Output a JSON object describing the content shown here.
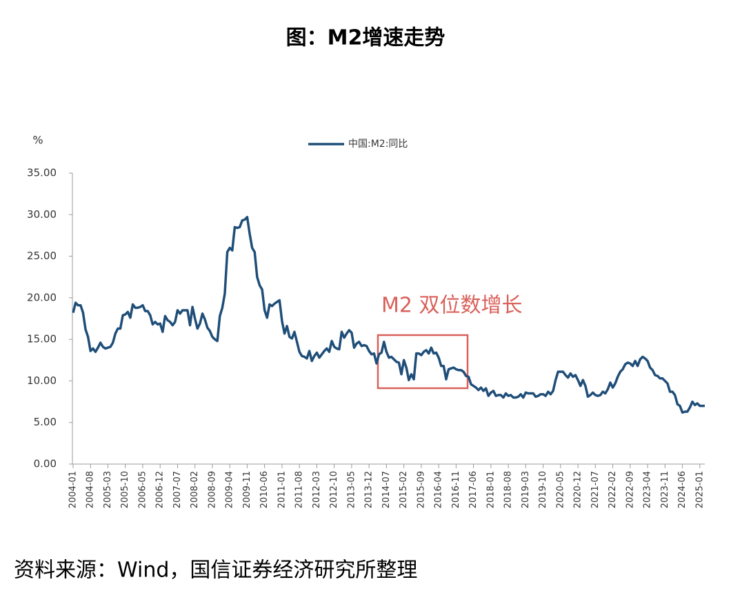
{
  "chart_data": {
    "type": "line",
    "title": "图：M2增速走势",
    "y_unit": "%",
    "annotation": "M2 双位数增长",
    "source": "资料来源：Wind，国信证券经济研究所整理",
    "x": [
      "2004-01",
      "2004-02",
      "2004-03",
      "2004-04",
      "2004-05",
      "2004-06",
      "2004-07",
      "2004-08",
      "2004-09",
      "2004-10",
      "2004-11",
      "2004-12",
      "2005-01",
      "2005-02",
      "2005-03",
      "2005-04",
      "2005-05",
      "2005-06",
      "2005-07",
      "2005-08",
      "2005-09",
      "2005-10",
      "2005-11",
      "2005-12",
      "2006-01",
      "2006-02",
      "2006-03",
      "2006-04",
      "2006-05",
      "2006-06",
      "2006-07",
      "2006-08",
      "2006-09",
      "2006-10",
      "2006-11",
      "2006-12",
      "2007-01",
      "2007-02",
      "2007-03",
      "2007-04",
      "2007-05",
      "2007-06",
      "2007-07",
      "2007-08",
      "2007-09",
      "2007-10",
      "2007-11",
      "2007-12",
      "2008-01",
      "2008-02",
      "2008-03",
      "2008-04",
      "2008-05",
      "2008-06",
      "2008-07",
      "2008-08",
      "2008-09",
      "2008-10",
      "2008-11",
      "2008-12",
      "2009-01",
      "2009-02",
      "2009-03",
      "2009-04",
      "2009-05",
      "2009-06",
      "2009-07",
      "2009-08",
      "2009-09",
      "2009-10",
      "2009-11",
      "2009-12",
      "2010-01",
      "2010-02",
      "2010-03",
      "2010-04",
      "2010-05",
      "2010-06",
      "2010-07",
      "2010-08",
      "2010-09",
      "2010-10",
      "2010-11",
      "2010-12",
      "2011-01",
      "2011-02",
      "2011-03",
      "2011-04",
      "2011-05",
      "2011-06",
      "2011-07",
      "2011-08",
      "2011-09",
      "2011-10",
      "2011-11",
      "2011-12",
      "2012-01",
      "2012-02",
      "2012-03",
      "2012-04",
      "2012-05",
      "2012-06",
      "2012-07",
      "2012-08",
      "2012-09",
      "2012-10",
      "2012-11",
      "2012-12",
      "2013-01",
      "2013-02",
      "2013-03",
      "2013-04",
      "2013-05",
      "2013-06",
      "2013-07",
      "2013-08",
      "2013-09",
      "2013-10",
      "2013-11",
      "2013-12",
      "2014-01",
      "2014-02",
      "2014-03",
      "2014-04",
      "2014-05",
      "2014-06",
      "2014-07",
      "2014-08",
      "2014-09",
      "2014-10",
      "2014-11",
      "2014-12",
      "2015-01",
      "2015-02",
      "2015-03",
      "2015-04",
      "2015-05",
      "2015-06",
      "2015-07",
      "2015-08",
      "2015-09",
      "2015-10",
      "2015-11",
      "2015-12",
      "2016-01",
      "2016-02",
      "2016-03",
      "2016-04",
      "2016-05",
      "2016-06",
      "2016-07",
      "2016-08",
      "2016-09",
      "2016-10",
      "2016-11",
      "2016-12",
      "2017-01",
      "2017-02",
      "2017-03",
      "2017-04",
      "2017-05",
      "2017-06",
      "2017-07",
      "2017-08",
      "2017-09",
      "2017-10",
      "2017-11",
      "2017-12",
      "2018-01",
      "2018-02",
      "2018-03",
      "2018-04",
      "2018-05",
      "2018-06",
      "2018-07",
      "2018-08",
      "2018-09",
      "2018-10",
      "2018-11",
      "2018-12",
      "2019-01",
      "2019-02",
      "2019-03",
      "2019-04",
      "2019-05",
      "2019-06",
      "2019-07",
      "2019-08",
      "2019-09",
      "2019-10",
      "2019-11",
      "2019-12",
      "2020-01",
      "2020-02",
      "2020-03",
      "2020-04",
      "2020-05",
      "2020-06",
      "2020-07",
      "2020-08",
      "2020-09",
      "2020-10",
      "2020-11",
      "2020-12",
      "2021-01",
      "2021-02",
      "2021-03",
      "2021-04",
      "2021-05",
      "2021-06",
      "2021-07",
      "2021-08",
      "2021-09",
      "2021-10",
      "2021-11",
      "2021-12",
      "2022-01",
      "2022-02",
      "2022-03",
      "2022-04",
      "2022-05",
      "2022-06",
      "2022-07",
      "2022-08",
      "2022-09",
      "2022-10",
      "2022-11",
      "2022-12",
      "2023-01",
      "2023-02",
      "2023-03",
      "2023-04",
      "2023-05",
      "2023-06",
      "2023-07",
      "2023-08",
      "2023-09",
      "2023-10",
      "2023-11",
      "2023-12",
      "2024-01",
      "2024-02",
      "2024-03",
      "2024-04",
      "2024-05",
      "2024-06",
      "2024-07",
      "2024-08",
      "2024-09",
      "2024-10",
      "2024-11",
      "2024-12",
      "2025-01",
      "2025-02",
      "2025-03"
    ],
    "series": [
      {
        "name": "中国:M2:同比",
        "color": "#1f4e79",
        "values": [
          18.2,
          19.4,
          19.1,
          19.1,
          18.2,
          16.2,
          15.3,
          13.6,
          13.9,
          13.5,
          14.0,
          14.6,
          14.1,
          13.9,
          14.0,
          14.1,
          14.6,
          15.7,
          16.3,
          16.3,
          17.9,
          18.0,
          18.3,
          17.6,
          19.2,
          18.8,
          18.8,
          18.9,
          19.1,
          18.4,
          18.4,
          17.9,
          16.8,
          17.1,
          16.8,
          16.9,
          15.9,
          17.8,
          17.3,
          17.1,
          16.7,
          17.1,
          18.5,
          18.1,
          18.5,
          18.5,
          18.5,
          16.7,
          18.9,
          17.5,
          16.3,
          16.9,
          18.1,
          17.4,
          16.4,
          16.0,
          15.3,
          15.0,
          14.8,
          17.8,
          18.8,
          20.5,
          25.5,
          26.0,
          25.7,
          28.5,
          28.4,
          28.5,
          29.3,
          29.4,
          29.7,
          27.7,
          26.0,
          25.5,
          22.5,
          21.5,
          21.0,
          18.5,
          17.6,
          19.2,
          19.0,
          19.3,
          19.5,
          19.7,
          17.2,
          15.7,
          16.6,
          15.3,
          15.1,
          15.9,
          14.7,
          13.5,
          13.0,
          12.9,
          12.7,
          13.6,
          12.4,
          13.0,
          13.4,
          12.8,
          13.2,
          13.6,
          13.9,
          13.5,
          14.8,
          14.1,
          13.9,
          13.8,
          15.9,
          15.2,
          15.7,
          16.1,
          15.8,
          14.0,
          14.5,
          14.7,
          14.2,
          14.3,
          14.2,
          13.6,
          13.2,
          13.3,
          12.1,
          13.2,
          13.4,
          14.7,
          13.5,
          12.8,
          12.9,
          12.6,
          12.3,
          12.2,
          10.8,
          12.5,
          11.6,
          10.1,
          10.8,
          10.2,
          13.3,
          13.3,
          13.1,
          13.5,
          13.7,
          13.3,
          14.0,
          13.3,
          13.4,
          12.8,
          11.8,
          11.8,
          10.2,
          11.4,
          11.5,
          11.6,
          11.4,
          11.3,
          11.3,
          11.1,
          10.6,
          10.5,
          9.6,
          9.4,
          9.2,
          8.9,
          9.2,
          8.8,
          9.1,
          8.2,
          8.6,
          8.8,
          8.2,
          8.3,
          8.3,
          8.0,
          8.5,
          8.2,
          8.3,
          8.0,
          8.0,
          8.1,
          8.4,
          8.0,
          8.6,
          8.5,
          8.5,
          8.5,
          8.1,
          8.2,
          8.4,
          8.4,
          8.2,
          8.7,
          8.4,
          8.8,
          10.1,
          11.1,
          11.1,
          11.1,
          10.7,
          10.4,
          10.9,
          10.5,
          10.7,
          10.1,
          9.4,
          10.1,
          9.4,
          8.1,
          8.3,
          8.6,
          8.3,
          8.2,
          8.3,
          8.7,
          8.5,
          9.0,
          9.8,
          9.2,
          9.7,
          10.5,
          11.1,
          11.4,
          12.0,
          12.2,
          12.1,
          11.8,
          12.4,
          11.8,
          12.6,
          12.9,
          12.7,
          12.4,
          11.6,
          11.3,
          10.7,
          10.6,
          10.3,
          10.3,
          10.0,
          9.7,
          8.7,
          8.7,
          8.3,
          7.2,
          7.0,
          6.2,
          6.3,
          6.3,
          6.8,
          7.5,
          7.1,
          7.3,
          7.0,
          7.0,
          7.0
        ]
      }
    ],
    "xlim": [
      "2004-01",
      "2025-03"
    ],
    "xticks": [
      "2004-01",
      "2004-08",
      "2005-03",
      "2005-10",
      "2006-05",
      "2006-12",
      "2007-07",
      "2008-02",
      "2008-09",
      "2009-04",
      "2009-11",
      "2010-06",
      "2011-01",
      "2011-08",
      "2012-03",
      "2012-10",
      "2013-05",
      "2013-12",
      "2014-07",
      "2015-02",
      "2015-09",
      "2016-04",
      "2016-11",
      "2017-06",
      "2018-01",
      "2018-08",
      "2019-03",
      "2019-10",
      "2020-05",
      "2020-12",
      "2021-07",
      "2022-02",
      "2022-09",
      "2023-04",
      "2023-11",
      "2024-06",
      "2025-01"
    ],
    "ylim": [
      0,
      35
    ],
    "yticks": [
      {
        "value": 0,
        "label": "0.00"
      },
      {
        "value": 5,
        "label": "5.00"
      },
      {
        "value": 10,
        "label": "10.00"
      },
      {
        "value": 15,
        "label": "15.00"
      },
      {
        "value": 20,
        "label": "20.00"
      },
      {
        "value": 25,
        "label": "25.00"
      },
      {
        "value": 30,
        "label": "30.00"
      },
      {
        "value": 35,
        "label": "35.00"
      }
    ],
    "legend": "top"
  }
}
